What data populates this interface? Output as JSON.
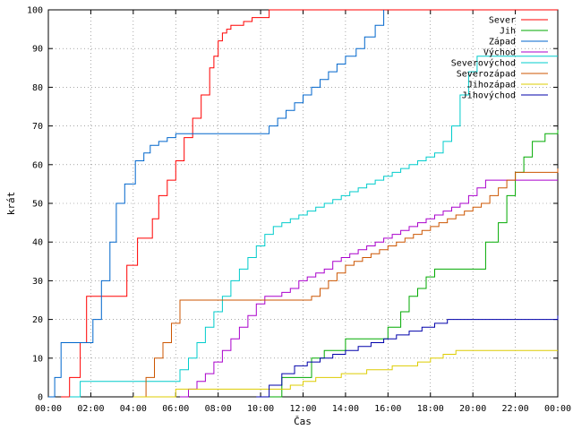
{
  "chart_data": {
    "type": "line",
    "xlabel": "Čas",
    "ylabel": "krát",
    "ylim": [
      0,
      100
    ],
    "xlim": [
      0,
      24
    ],
    "grid": true,
    "legend_position": "top-right",
    "x_ticks": [
      "00:00",
      "02:00",
      "04:00",
      "06:00",
      "08:00",
      "10:00",
      "12:00",
      "14:00",
      "16:00",
      "18:00",
      "20:00",
      "22:00",
      "00:00"
    ],
    "y_ticks": [
      0,
      10,
      20,
      30,
      40,
      50,
      60,
      70,
      80,
      90,
      100
    ],
    "series": [
      {
        "name": "Sever",
        "color": "#ff0000",
        "x": [
          0.6,
          1,
          1.5,
          1.8,
          3.4,
          3.7,
          4.2,
          4.5,
          4.9,
          5.2,
          5.6,
          6,
          6.4,
          6.8,
          7.2,
          7.6,
          7.8,
          8,
          8.2,
          8.4,
          8.6,
          8.8,
          9.2,
          9.6,
          10.4,
          10.8,
          11.2,
          11.6,
          13.4,
          13.8,
          24
        ],
        "y": [
          0,
          5,
          14,
          26,
          26,
          34,
          41,
          41,
          46,
          52,
          56,
          61,
          67,
          72,
          78,
          85,
          88,
          92,
          94,
          95,
          96,
          96,
          97,
          98,
          100,
          100,
          100,
          100,
          100,
          100,
          100
        ]
      },
      {
        "name": "Jih",
        "color": "#00aa00",
        "x": [
          10.2,
          11,
          12.4,
          13,
          14,
          16,
          16.6,
          17,
          17.4,
          17.8,
          18.2,
          20.2,
          20.6,
          21.2,
          21.6,
          22,
          22.4,
          22.8,
          23.4,
          24
        ],
        "y": [
          0,
          5,
          10,
          12,
          15,
          18,
          22,
          26,
          28,
          31,
          33,
          33,
          40,
          45,
          52,
          58,
          62,
          66,
          68,
          69
        ]
      },
      {
        "name": "Západ",
        "color": "#0066cc",
        "x": [
          0,
          0.3,
          0.6,
          1.9,
          2.1,
          2.5,
          2.9,
          3.2,
          3.6,
          4.1,
          4.5,
          4.8,
          5.2,
          5.6,
          6,
          9.8,
          10.4,
          10.8,
          11.2,
          11.6,
          12,
          12.4,
          12.8,
          13.2,
          13.6,
          14,
          14.5,
          14.9,
          15.4,
          15.8
        ],
        "y": [
          0,
          5,
          14,
          14,
          20,
          30,
          40,
          50,
          55,
          61,
          63,
          65,
          66,
          67,
          68,
          68,
          70,
          72,
          74,
          76,
          78,
          80,
          82,
          84,
          86,
          88,
          90,
          93,
          96,
          100
        ]
      },
      {
        "name": "Východ",
        "color": "#aa00cc",
        "x": [
          6.2,
          6.6,
          7,
          7.4,
          7.8,
          8.2,
          8.6,
          9,
          9.4,
          9.8,
          10.2,
          10.6,
          11,
          11.4,
          11.8,
          12.2,
          12.6,
          13,
          13.4,
          13.8,
          14.2,
          14.6,
          15,
          15.4,
          15.8,
          16.2,
          16.6,
          17,
          17.4,
          17.8,
          18.2,
          18.6,
          19,
          19.4,
          19.8,
          20.2,
          20.6,
          21,
          21.4,
          21.8,
          22.2,
          24
        ],
        "y": [
          0,
          2,
          4,
          6,
          9,
          12,
          15,
          18,
          21,
          24,
          26,
          26,
          27,
          28,
          30,
          31,
          32,
          33,
          35,
          36,
          37,
          38,
          39,
          40,
          41,
          42,
          43,
          44,
          45,
          46,
          47,
          48,
          49,
          50,
          52,
          54,
          56,
          56,
          56,
          56,
          56,
          56
        ]
      },
      {
        "name": "Severovýchod",
        "color": "#00cccc",
        "x": [
          1,
          1.5,
          5.8,
          6.2,
          6.6,
          7,
          7.4,
          7.8,
          8.2,
          8.6,
          9,
          9.4,
          9.8,
          10.2,
          10.6,
          11,
          11.4,
          11.8,
          12.2,
          12.6,
          13,
          13.4,
          13.8,
          14.2,
          14.6,
          15,
          15.4,
          15.8,
          16.2,
          16.6,
          17,
          17.4,
          17.8,
          18.2,
          18.6,
          19,
          19.4,
          19.8,
          20.2,
          24
        ],
        "y": [
          0,
          4,
          4,
          7,
          10,
          14,
          18,
          22,
          26,
          30,
          33,
          36,
          39,
          42,
          44,
          45,
          46,
          47,
          48,
          49,
          50,
          51,
          52,
          53,
          54,
          55,
          56,
          57,
          58,
          59,
          60,
          61,
          62,
          63,
          66,
          70,
          78,
          84,
          88,
          88
        ]
      },
      {
        "name": "Severozápad",
        "color": "#cc5500",
        "x": [
          4.2,
          4.6,
          5,
          5.4,
          5.8,
          6.2,
          12,
          12.4,
          12.8,
          13.2,
          13.6,
          14,
          14.4,
          14.8,
          15.2,
          15.6,
          16,
          16.4,
          16.8,
          17.2,
          17.6,
          18,
          18.4,
          18.8,
          19.2,
          19.6,
          20,
          20.4,
          20.8,
          21.2,
          21.6,
          22,
          24
        ],
        "y": [
          0,
          5,
          10,
          14,
          19,
          25,
          25,
          26,
          28,
          30,
          32,
          34,
          35,
          36,
          37,
          38,
          39,
          40,
          41,
          42,
          43,
          44,
          45,
          46,
          47,
          48,
          49,
          50,
          52,
          54,
          56,
          58,
          59
        ]
      },
      {
        "name": "Jihozápad",
        "color": "#ddcc00",
        "x": [
          4,
          6,
          10.8,
          11.4,
          12,
          12.6,
          13.2,
          13.8,
          14.4,
          15,
          15.6,
          16.2,
          16.8,
          17.4,
          18,
          18.6,
          19.2,
          20,
          21,
          24
        ],
        "y": [
          0,
          2,
          2,
          3,
          4,
          5,
          5,
          6,
          6,
          7,
          7,
          8,
          8,
          9,
          10,
          11,
          12,
          12,
          12,
          12
        ]
      },
      {
        "name": "Jihovýchod",
        "color": "#0000aa",
        "x": [
          9.8,
          10.4,
          11,
          11.6,
          12.2,
          12.8,
          13.4,
          14,
          14.6,
          15.2,
          15.8,
          16.4,
          17,
          17.6,
          18.2,
          18.8,
          19.4,
          20,
          21,
          24
        ],
        "y": [
          0,
          3,
          6,
          8,
          9,
          10,
          11,
          12,
          13,
          14,
          15,
          16,
          17,
          18,
          19,
          20,
          20,
          20,
          20,
          21
        ]
      }
    ]
  }
}
